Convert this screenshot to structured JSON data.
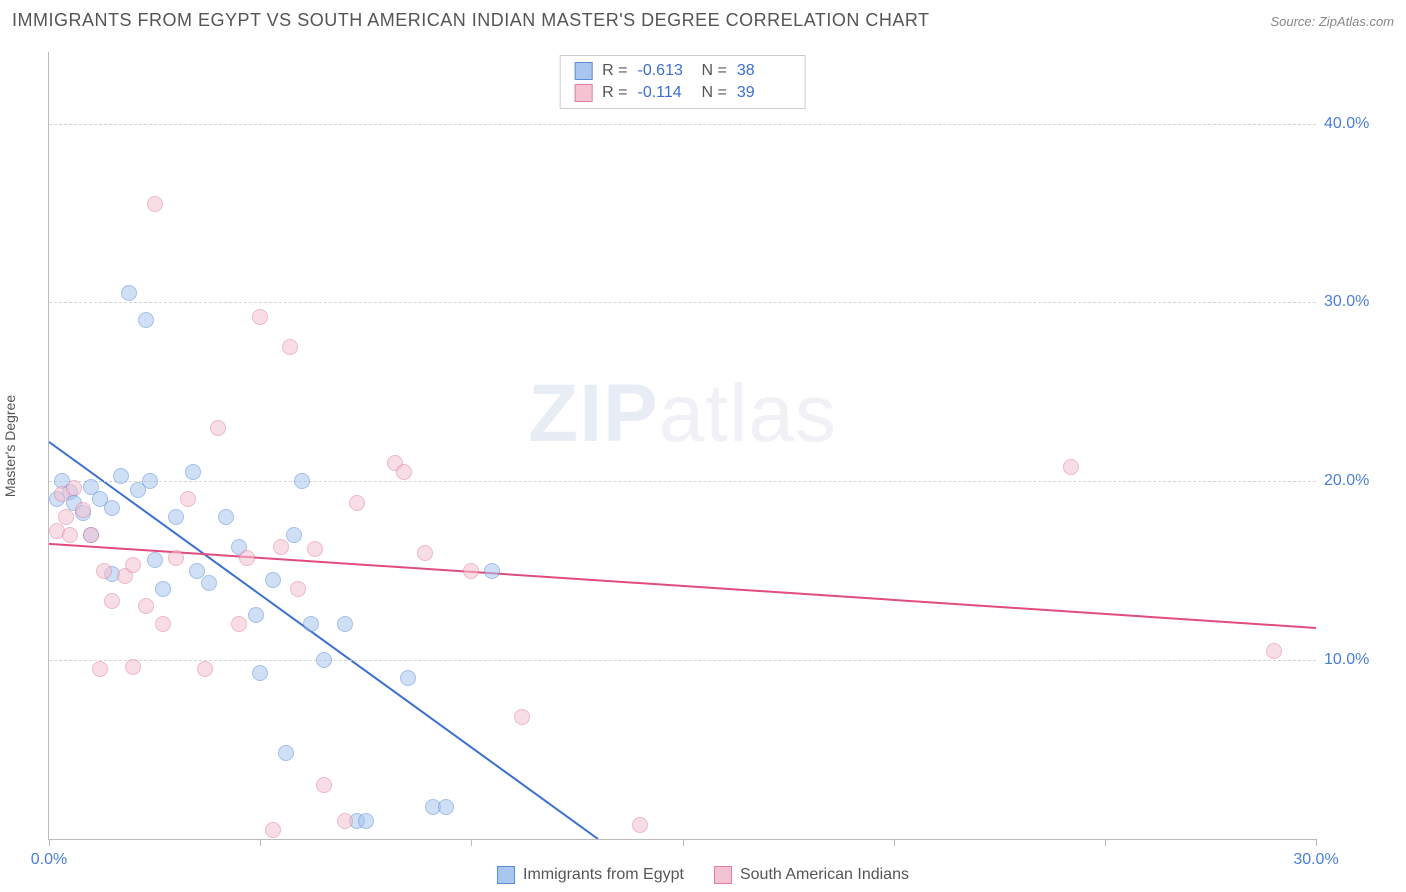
{
  "header": {
    "title": "IMMIGRANTS FROM EGYPT VS SOUTH AMERICAN INDIAN MASTER'S DEGREE CORRELATION CHART",
    "source_label": "Source: ZipAtlas.com"
  },
  "chart": {
    "type": "scatter",
    "background_color": "#ffffff",
    "grid_color": "#d5d5d5",
    "axis_color": "#bbbbbb",
    "ylabel": "Master's Degree",
    "xlim": [
      0,
      30
    ],
    "ylim": [
      0,
      44
    ],
    "yticks": [
      10,
      20,
      30,
      40
    ],
    "ytick_labels": [
      "10.0%",
      "20.0%",
      "30.0%",
      "40.0%"
    ],
    "xtick_positions": [
      0,
      5,
      10,
      15,
      20,
      25,
      30
    ],
    "xtick_labels": {
      "0": "0.0%",
      "30": "30.0%"
    },
    "tick_label_color": "#4a7fd8",
    "tick_label_fontsize": 16,
    "axis_label_color": "#555555",
    "marker_size": 16,
    "marker_opacity": 0.55,
    "watermark": {
      "zip": "ZIP",
      "atlas": "atlas"
    },
    "series": [
      {
        "name": "Immigrants from Egypt",
        "color_fill": "#a8c6ee",
        "color_border": "#5a8fd6",
        "R": "-0.613",
        "N": "38",
        "trend": {
          "x1": 0,
          "y1": 22.2,
          "x2": 13.0,
          "y2": 0,
          "color": "#3b6fd0",
          "width": 2
        },
        "points": [
          [
            0.2,
            19.0
          ],
          [
            0.3,
            20.0
          ],
          [
            0.5,
            19.4
          ],
          [
            0.6,
            18.8
          ],
          [
            0.8,
            18.2
          ],
          [
            1.0,
            19.7
          ],
          [
            1.0,
            17.0
          ],
          [
            1.2,
            19.0
          ],
          [
            1.5,
            18.5
          ],
          [
            1.5,
            14.8
          ],
          [
            1.7,
            20.3
          ],
          [
            1.9,
            30.5
          ],
          [
            2.1,
            19.5
          ],
          [
            2.3,
            29.0
          ],
          [
            2.4,
            20.0
          ],
          [
            2.5,
            15.6
          ],
          [
            2.7,
            14.0
          ],
          [
            3.0,
            18.0
          ],
          [
            3.4,
            20.5
          ],
          [
            3.5,
            15.0
          ],
          [
            3.8,
            14.3
          ],
          [
            4.2,
            18.0
          ],
          [
            4.5,
            16.3
          ],
          [
            4.9,
            12.5
          ],
          [
            5.0,
            9.3
          ],
          [
            5.3,
            14.5
          ],
          [
            5.6,
            4.8
          ],
          [
            5.8,
            17.0
          ],
          [
            6.0,
            20.0
          ],
          [
            6.2,
            12.0
          ],
          [
            6.5,
            10.0
          ],
          [
            7.0,
            12.0
          ],
          [
            7.3,
            1.0
          ],
          [
            7.5,
            1.0
          ],
          [
            8.5,
            9.0
          ],
          [
            9.1,
            1.8
          ],
          [
            9.4,
            1.8
          ],
          [
            10.5,
            15.0
          ]
        ]
      },
      {
        "name": "South American Indians",
        "color_fill": "#f4c3d1",
        "color_border": "#e07fa0",
        "R": "-0.114",
        "N": "39",
        "trend": {
          "x1": 0,
          "y1": 16.5,
          "x2": 30,
          "y2": 11.8,
          "color": "#e04c7e",
          "width": 2
        },
        "points": [
          [
            0.2,
            17.2
          ],
          [
            0.3,
            19.3
          ],
          [
            0.4,
            18.0
          ],
          [
            0.5,
            17.0
          ],
          [
            0.6,
            19.6
          ],
          [
            0.8,
            18.4
          ],
          [
            1.0,
            17.0
          ],
          [
            1.2,
            9.5
          ],
          [
            1.3,
            15.0
          ],
          [
            1.5,
            13.3
          ],
          [
            1.8,
            14.7
          ],
          [
            2.0,
            9.6
          ],
          [
            2.0,
            15.3
          ],
          [
            2.3,
            13.0
          ],
          [
            2.5,
            35.5
          ],
          [
            2.7,
            12.0
          ],
          [
            3.0,
            15.7
          ],
          [
            3.3,
            19.0
          ],
          [
            3.7,
            9.5
          ],
          [
            4.0,
            23.0
          ],
          [
            4.5,
            12.0
          ],
          [
            4.7,
            15.7
          ],
          [
            5.0,
            29.2
          ],
          [
            5.3,
            0.5
          ],
          [
            5.5,
            16.3
          ],
          [
            5.7,
            27.5
          ],
          [
            5.9,
            14.0
          ],
          [
            6.3,
            16.2
          ],
          [
            6.5,
            3.0
          ],
          [
            7.0,
            1.0
          ],
          [
            7.3,
            18.8
          ],
          [
            8.2,
            21.0
          ],
          [
            8.4,
            20.5
          ],
          [
            8.9,
            16.0
          ],
          [
            10.0,
            15.0
          ],
          [
            11.2,
            6.8
          ],
          [
            14.0,
            0.8
          ],
          [
            24.2,
            20.8
          ],
          [
            29.0,
            10.5
          ]
        ]
      }
    ],
    "legend_top": {
      "R_label": "R =",
      "N_label": "N ="
    },
    "legend_bottom_labels": [
      "Immigrants from Egypt",
      "South American Indians"
    ]
  }
}
